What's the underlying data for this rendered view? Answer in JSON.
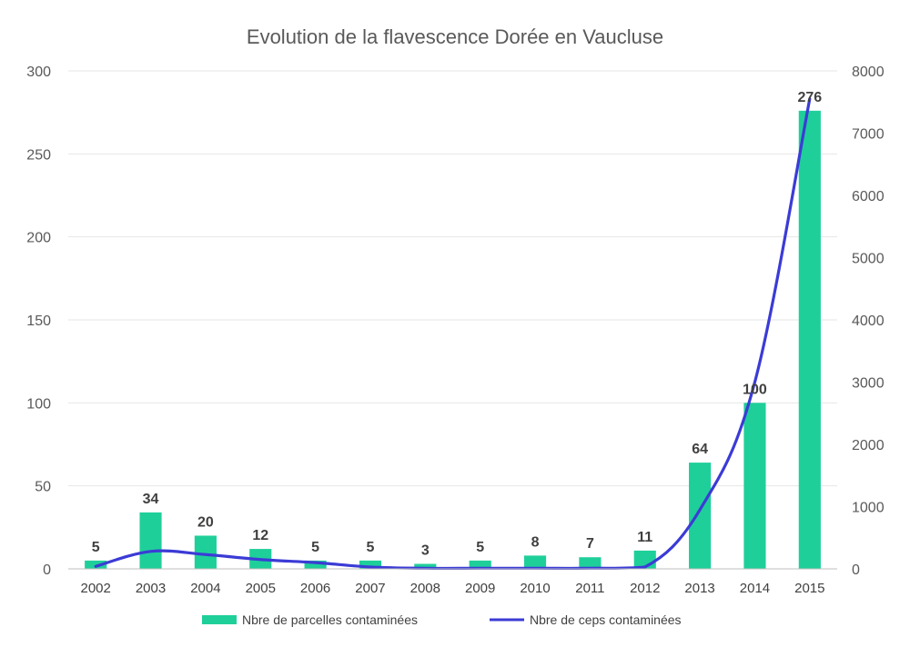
{
  "chart_data": {
    "type": "bar",
    "title": "Evolution de la flavescence Dorée en Vaucluse",
    "categories": [
      "2002",
      "2003",
      "2004",
      "2005",
      "2006",
      "2007",
      "2008",
      "2009",
      "2010",
      "2011",
      "2012",
      "2013",
      "2014",
      "2015"
    ],
    "series": [
      {
        "name": "Nbre de parcelles contaminées",
        "type": "bar",
        "axis": "left",
        "color": "#1fcf9a",
        "values": [
          5,
          34,
          20,
          12,
          5,
          5,
          3,
          5,
          8,
          7,
          11,
          64,
          100,
          276
        ],
        "data_labels": [
          "5",
          "34",
          "20",
          "12",
          "5",
          "5",
          "3",
          "5",
          "8",
          "7",
          "11",
          "64",
          "100",
          "276"
        ]
      },
      {
        "name": "Nbre de ceps contaminées",
        "type": "line",
        "axis": "right",
        "color": "#3b3bd6",
        "values": [
          40,
          280,
          230,
          150,
          100,
          30,
          10,
          10,
          10,
          10,
          30,
          950,
          3000,
          7550
        ]
      }
    ],
    "y_left": {
      "min": 0,
      "max": 300,
      "ticks": [
        "0",
        "50",
        "100",
        "150",
        "200",
        "250",
        "300"
      ]
    },
    "y_right": {
      "min": 0,
      "max": 8000,
      "ticks": [
        "0",
        "1000",
        "2000",
        "3000",
        "4000",
        "5000",
        "6000",
        "7000",
        "8000"
      ]
    },
    "grid": true,
    "legend_position": "bottom"
  }
}
